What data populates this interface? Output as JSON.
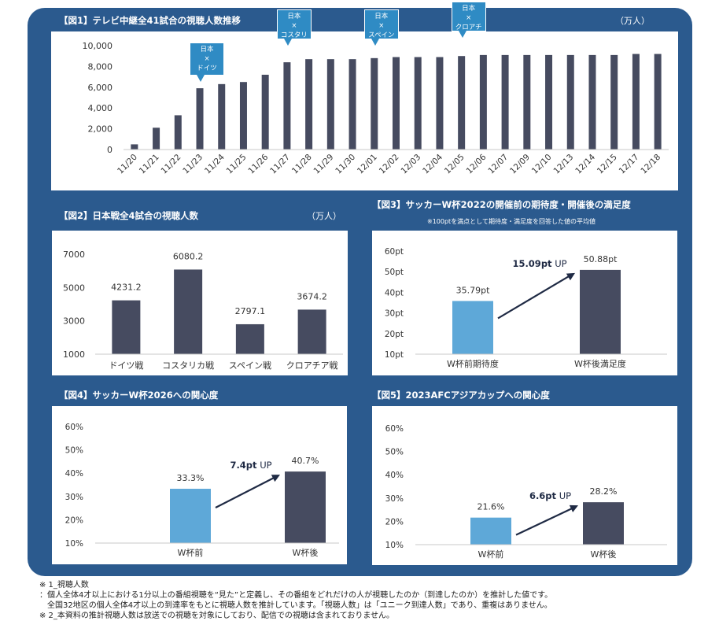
{
  "chart_data": [
    {
      "type": "bar",
      "title": "【図1】テレビ中継全41試合の視聴人数推移",
      "unit": "（万人）",
      "categories": [
        "11/20",
        "11/21",
        "11/22",
        "11/23",
        "11/24",
        "11/25",
        "11/26",
        "11/27",
        "11/28",
        "11/29",
        "11/30",
        "12/01",
        "12/02",
        "12/03",
        "12/04",
        "12/05",
        "12/06",
        "12/07",
        "12/09",
        "12/10",
        "12/13",
        "12/14",
        "12/15",
        "12/17",
        "12/18"
      ],
      "values": [
        500,
        2100,
        3300,
        5900,
        6300,
        6500,
        7200,
        8400,
        8700,
        8700,
        8700,
        8800,
        8900,
        8900,
        8900,
        9000,
        9100,
        9100,
        9100,
        9100,
        9100,
        9100,
        9100,
        9200,
        9200
      ],
      "yticks": [
        "10,000",
        "8,000",
        "6,000",
        "4,000",
        "2,000",
        "0"
      ],
      "ylim": [
        0,
        10000
      ],
      "grid": false,
      "callouts": [
        {
          "line1": "日本",
          "line2": "×",
          "line3": "ドイツ",
          "category": "11/23"
        },
        {
          "line1": "日本",
          "line2": "×",
          "line3": "コスタリカ",
          "category": "11/27"
        },
        {
          "line1": "日本",
          "line2": "×",
          "line3": "スペイン",
          "category": "12/01"
        },
        {
          "line1": "日本",
          "line2": "×",
          "line3": "クロアチア",
          "category": "12/05"
        }
      ]
    },
    {
      "type": "bar",
      "title": "【図2】日本戦全4試合の視聴人数",
      "unit": "（万人）",
      "categories": [
        "ドイツ戦",
        "コスタリカ戦",
        "スペイン戦",
        "クロアチア戦"
      ],
      "values": [
        4231.2,
        6080.2,
        2797.1,
        3674.2
      ],
      "value_labels": [
        "4231.2",
        "6080.2",
        "2797.1",
        "3674.2"
      ],
      "yticks": [
        "7000",
        "5000",
        "3000",
        "1000"
      ],
      "ylim": [
        1000,
        7000
      ],
      "grid": false
    },
    {
      "type": "bar",
      "title": "【図3】サッカーW杯2022の開催前の期待度・開催後の満足度",
      "subtitle": "※100ptを満点として期待度・満足度を回答した値の平均値",
      "categories": [
        "W杯前期待度",
        "W杯後満足度"
      ],
      "values": [
        35.79,
        50.88
      ],
      "value_labels": [
        "35.79pt",
        "50.88pt"
      ],
      "annotation": {
        "bold": "15.09pt",
        "rest": " UP"
      },
      "yticks": [
        "60pt",
        "50pt",
        "40pt",
        "30pt",
        "20pt",
        "10pt"
      ],
      "ylim": [
        10,
        60
      ],
      "colors": [
        "#5ea8d8",
        "#464b60"
      ],
      "grid": false
    },
    {
      "type": "bar",
      "title": "【図4】サッカーW杯2026への関心度",
      "categories": [
        "W杯前",
        "W杯後"
      ],
      "values": [
        33.3,
        40.7
      ],
      "value_labels": [
        "33.3%",
        "40.7%"
      ],
      "annotation": {
        "bold": "7.4pt",
        "rest": " UP"
      },
      "yticks": [
        "60%",
        "50%",
        "40%",
        "30%",
        "20%",
        "10%"
      ],
      "ylim": [
        10,
        60
      ],
      "colors": [
        "#5ea8d8",
        "#464b60"
      ],
      "grid": false
    },
    {
      "type": "bar",
      "title": "【図5】2023AFCアジアカップへの関心度",
      "categories": [
        "W杯前",
        "W杯後"
      ],
      "values": [
        21.6,
        28.2
      ],
      "value_labels": [
        "21.6%",
        "28.2%"
      ],
      "annotation": {
        "bold": "6.6pt",
        "rest": " UP"
      },
      "yticks": [
        "60%",
        "50%",
        "40%",
        "30%",
        "20%",
        "10%"
      ],
      "ylim": [
        10,
        60
      ],
      "colors": [
        "#5ea8d8",
        "#464b60"
      ],
      "grid": false
    }
  ],
  "colors": {
    "panel": "#2b5a8e",
    "bar_dark": "#464b60",
    "bar_light": "#5ea8d8",
    "callout": "#2f8bc4"
  },
  "footnotes": [
    "※ 1_視聴人数",
    "：個人全体4才以上における1分以上の番組視聴を“見た”と定義し、その番組をどれだけの人が視聴したのか（到達したのか）を推計した値です。",
    "　全国32地区の個人全体4才以上の到達率をもとに視聴人数を推計しています。「視聴人数」は「ユニーク到達人数」であり、重複はありません。",
    "※ 2_本資料の推計視聴人数は放送での視聴を対象にしており、配信での視聴は含まれておりません。"
  ]
}
